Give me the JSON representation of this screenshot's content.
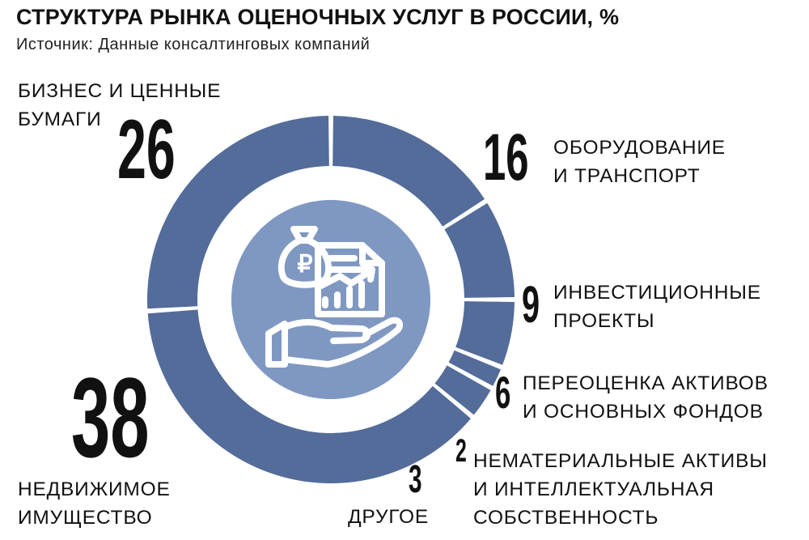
{
  "header": {
    "title": "СТРУКТУРА РЫНКА ОЦЕНОЧНЫХ УСЛУГ В РОССИИ, %",
    "source": "Источник: Данные консалтинговых компаний"
  },
  "colors": {
    "ring": "#536c9a",
    "inner_disc": "#7f98c2",
    "inner_ring": "#ffffff",
    "icon": "#ffffff",
    "text": "#111111"
  },
  "center_icon": "money-bag-hand-document-growth-icon",
  "chart_data": {
    "type": "pie",
    "variant": "donut",
    "title": "СТРУКТУРА РЫНКА ОЦЕНОЧНЫХ УСЛУГ В РОССИИ, %",
    "unit": "%",
    "legend": "none",
    "start": "top",
    "direction": "clockwise",
    "segments": [
      {
        "value": 16,
        "value_label": "16",
        "label_lines": [
          "ОБОРУДОВАНИЕ",
          "И ТРАНСПОРТ"
        ]
      },
      {
        "value": 9,
        "value_label": "9",
        "label_lines": [
          "ИНВЕСТИЦИОННЫЕ",
          "ПРОЕКТЫ"
        ]
      },
      {
        "value": 6,
        "value_label": "6",
        "label_lines": [
          "ПЕРЕОЦЕНКА АКТИВОВ",
          "И ОСНОВНЫХ ФОНДОВ"
        ]
      },
      {
        "value": 2,
        "value_label": "2",
        "label_lines": [
          "НЕМАТЕРИАЛЬНЫЕ АКТИВЫ",
          "И ИНТЕЛЛЕКТУАЛЬНАЯ",
          "СОБСТВЕННОСТЬ"
        ]
      },
      {
        "value": 3,
        "value_label": "3",
        "label_lines": [
          "ДРУГОЕ"
        ]
      },
      {
        "value": 38,
        "value_label": "38",
        "label_lines": [
          "НЕДВИЖИМОЕ",
          "ИМУЩЕСТВО"
        ]
      },
      {
        "value": 26,
        "value_label": "26",
        "label_lines": [
          "БИЗНЕС И ЦЕННЫЕ",
          "БУМАГИ"
        ]
      }
    ]
  }
}
